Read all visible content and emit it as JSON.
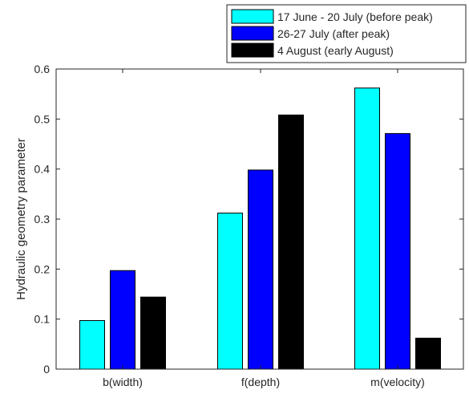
{
  "chart_data": {
    "type": "bar",
    "title": "",
    "xlabel": "",
    "ylabel": "Hydraulic geometry parameter",
    "ylim": [
      0,
      0.6
    ],
    "yticks": [
      "0",
      "0.1",
      "0.2",
      "0.3",
      "0.4",
      "0.5",
      "0.6"
    ],
    "categories": [
      "b(width)",
      "f(depth)",
      "m(velocity)"
    ],
    "grid": false,
    "legend_position": "top-right, above plot",
    "series": [
      {
        "name": "17 June - 20 July (before peak)",
        "color": "#00ffff",
        "values": [
          0.097,
          0.312,
          0.562
        ]
      },
      {
        "name": "26-27 July (after peak)",
        "color": "#0000ff",
        "values": [
          0.197,
          0.398,
          0.471
        ]
      },
      {
        "name": "4 August (early August)",
        "color": "#000000",
        "values": [
          0.144,
          0.508,
          0.062
        ]
      }
    ]
  }
}
